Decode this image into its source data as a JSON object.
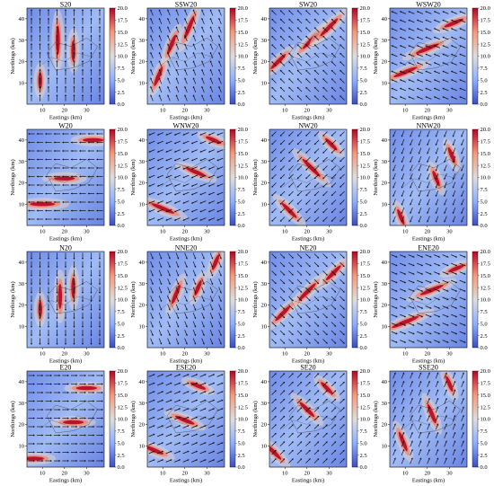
{
  "chart_data": {
    "type": "heatmap",
    "layout": {
      "rows": 4,
      "cols": 4
    },
    "xlabel": "Eastings (km)",
    "ylabel": "Northings (km)",
    "x_ticks": [
      10,
      20,
      30
    ],
    "y_ticks": [
      10,
      20,
      30,
      40
    ],
    "xlim": [
      3,
      38
    ],
    "ylim": [
      0,
      45
    ],
    "colorbar": {
      "min": 0.0,
      "max": 20.0,
      "ticks": [
        "0.0",
        "2.5",
        "5.0",
        "7.5",
        "10.0",
        "12.5",
        "15.0",
        "17.5",
        "20.0"
      ],
      "colors": [
        "#3b4cc0",
        "#8db0fe",
        "#dddddd",
        "#f49a7b",
        "#b40426"
      ]
    },
    "panels": [
      {
        "title": "S20",
        "wind_dir_deg": 180.0,
        "hotspots": [
          [
            17,
            30,
            7
          ],
          [
            9,
            11,
            4
          ],
          [
            24,
            25,
            5
          ]
        ]
      },
      {
        "title": "SSW20",
        "wind_dir_deg": 202.5,
        "hotspots": [
          [
            22,
            36,
            6
          ],
          [
            8,
            13,
            5
          ],
          [
            14,
            28,
            5
          ]
        ]
      },
      {
        "title": "SW20",
        "wind_dir_deg": 225.0,
        "hotspots": [
          [
            22,
            30,
            6
          ],
          [
            7,
            20,
            5
          ],
          [
            30,
            36,
            6
          ]
        ]
      },
      {
        "title": "WSW20",
        "wind_dir_deg": 247.5,
        "hotspots": [
          [
            10,
            15,
            6
          ],
          [
            20,
            26,
            6
          ],
          [
            32,
            38,
            5
          ]
        ]
      },
      {
        "title": "W20",
        "wind_dir_deg": 270.0,
        "hotspots": [
          [
            10,
            10,
            6
          ],
          [
            20,
            22,
            5
          ],
          [
            33,
            40,
            5
          ]
        ]
      },
      {
        "title": "WNW20",
        "wind_dir_deg": 292.5,
        "hotspots": [
          [
            10,
            8,
            6
          ],
          [
            25,
            25,
            5
          ],
          [
            33,
            40,
            4
          ]
        ]
      },
      {
        "title": "NW20",
        "wind_dir_deg": 315.0,
        "hotspots": [
          [
            12,
            7,
            5
          ],
          [
            22,
            27,
            6
          ],
          [
            31,
            38,
            4
          ]
        ]
      },
      {
        "title": "NNW20",
        "wind_dir_deg": 337.5,
        "hotspots": [
          [
            8,
            4,
            4
          ],
          [
            24,
            22,
            4
          ],
          [
            31,
            33,
            4
          ]
        ]
      },
      {
        "title": "N20",
        "wind_dir_deg": 0.0,
        "hotspots": [
          [
            18,
            24,
            6
          ],
          [
            24,
            28,
            5
          ],
          [
            9,
            18,
            4
          ]
        ]
      },
      {
        "title": "NNE20",
        "wind_dir_deg": 22.5,
        "hotspots": [
          [
            16,
            25,
            5
          ],
          [
            26,
            28,
            4
          ],
          [
            34,
            40,
            4
          ]
        ]
      },
      {
        "title": "NE20",
        "wind_dir_deg": 45.0,
        "hotspots": [
          [
            20,
            26,
            6
          ],
          [
            9,
            16,
            5
          ],
          [
            32,
            35,
            5
          ]
        ]
      },
      {
        "title": "ENE20",
        "wind_dir_deg": 67.5,
        "hotspots": [
          [
            10,
            12,
            7
          ],
          [
            22,
            27,
            6
          ],
          [
            33,
            37,
            4
          ]
        ]
      },
      {
        "title": "E20",
        "wind_dir_deg": 90.0,
        "hotspots": [
          [
            6,
            4,
            5
          ],
          [
            24,
            21,
            5
          ],
          [
            30,
            37,
            5
          ]
        ]
      },
      {
        "title": "ESE20",
        "wind_dir_deg": 112.5,
        "hotspots": [
          [
            6,
            8,
            5
          ],
          [
            20,
            22,
            5
          ],
          [
            26,
            38,
            4
          ]
        ]
      },
      {
        "title": "SE20",
        "wind_dir_deg": 135.0,
        "hotspots": [
          [
            5,
            7,
            5
          ],
          [
            20,
            27,
            5
          ],
          [
            29,
            37,
            4
          ]
        ]
      },
      {
        "title": "SSE20",
        "wind_dir_deg": 157.5,
        "hotspots": [
          [
            9,
            12,
            5
          ],
          [
            22,
            25,
            5
          ],
          [
            30,
            39,
            4
          ]
        ]
      }
    ]
  }
}
